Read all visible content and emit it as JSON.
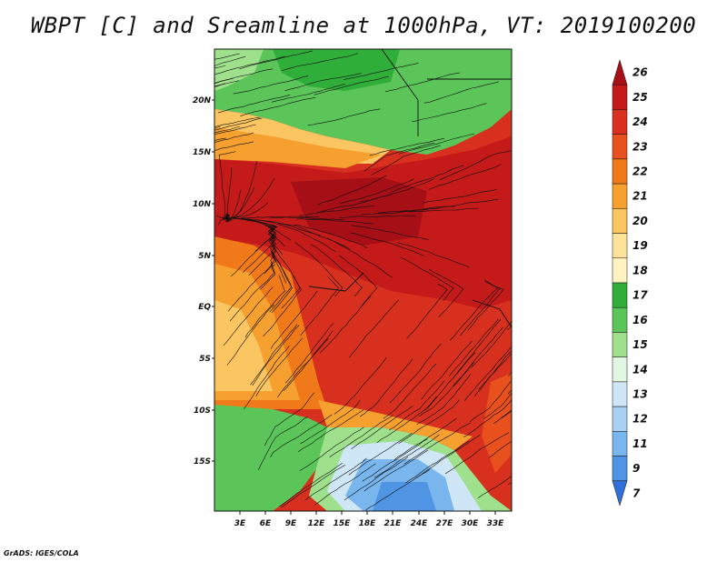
{
  "title": "WBPT [C] and Sreamline at 1000hPa, VT: 2019100200",
  "credit": "GrADS: IGES/COLA",
  "map": {
    "lat_labels": [
      "20N",
      "15N",
      "10N",
      "5N",
      "EQ",
      "5S",
      "10S",
      "15S"
    ],
    "lon_labels": [
      "3E",
      "6E",
      "9E",
      "12E",
      "15E",
      "18E",
      "21E",
      "24E",
      "27E",
      "30E",
      "33E"
    ]
  },
  "colorbar": {
    "labels": [
      "26",
      "25",
      "24",
      "23",
      "22",
      "21",
      "20",
      "19",
      "18",
      "17",
      "16",
      "15",
      "14",
      "13",
      "12",
      "11",
      "9",
      "7"
    ],
    "colors": [
      "#a50f15",
      "#c41a1a",
      "#d93020",
      "#e8501e",
      "#f07a1a",
      "#f6a030",
      "#fbc561",
      "#fde39a",
      "#fff3c0",
      "#2fae3a",
      "#5cc55a",
      "#9fe08c",
      "#e2f7e2",
      "#cfe6f7",
      "#a9d0f3",
      "#7ab6ee",
      "#4f95e4",
      "#2f6fd8"
    ]
  }
}
